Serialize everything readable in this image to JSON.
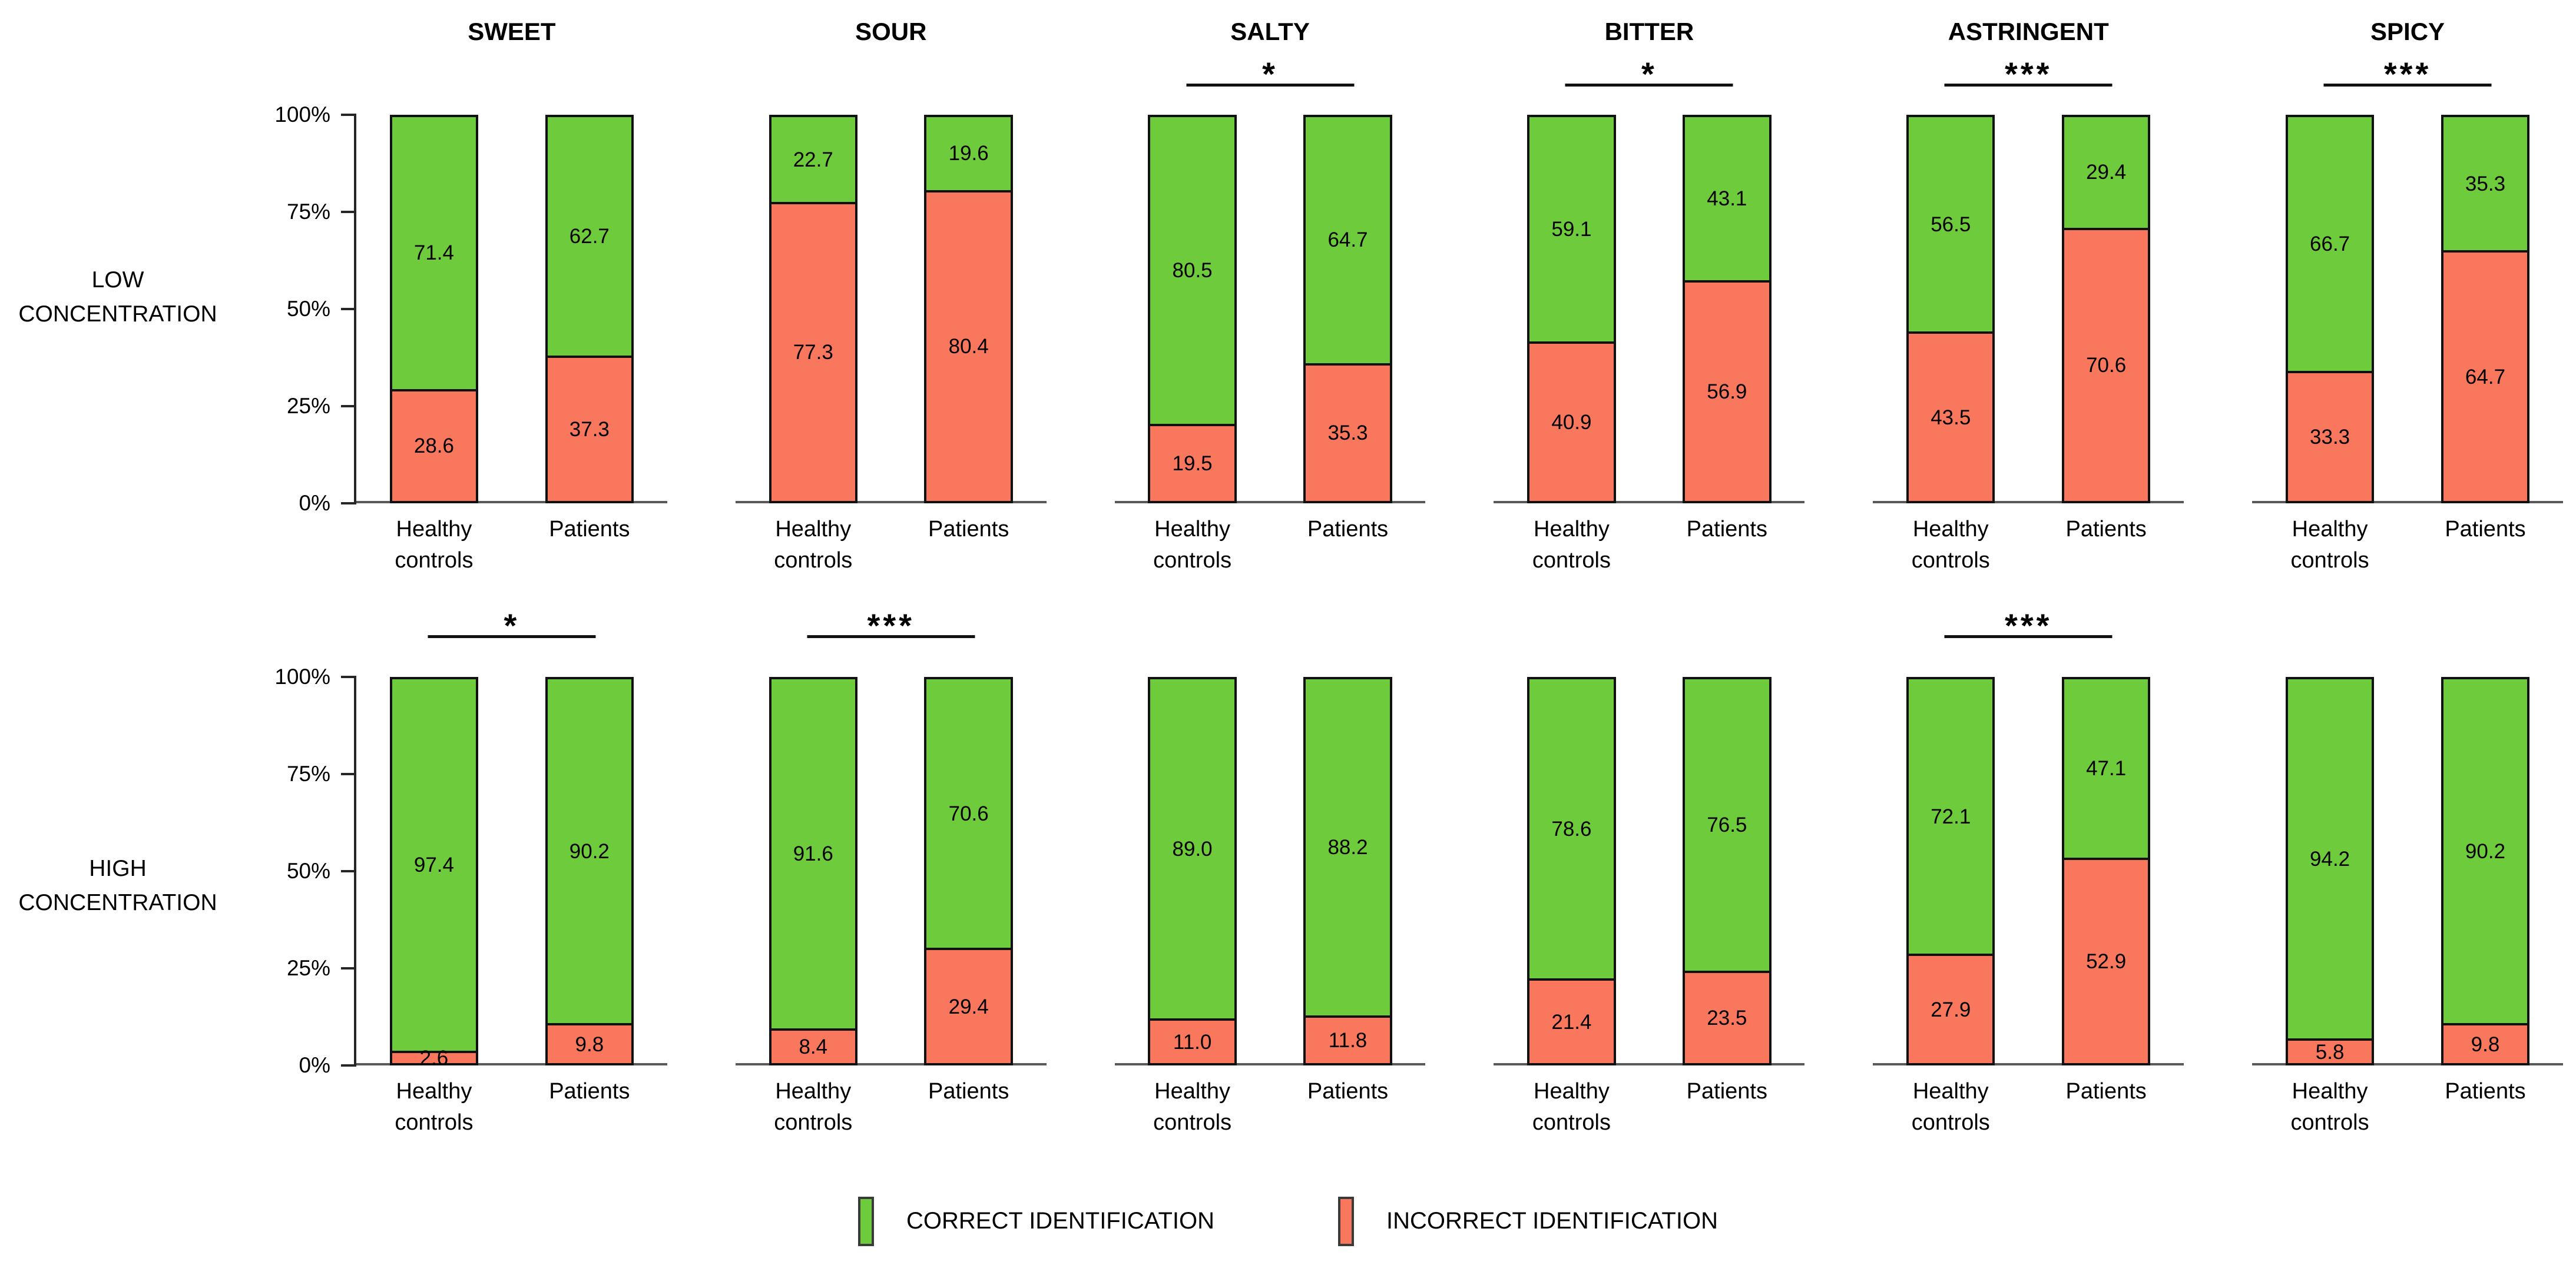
{
  "chart_data": {
    "type": "bar",
    "stacked": true,
    "value_unit": "percent",
    "colors": {
      "correct": "#6dcb3c",
      "incorrect": "#f9775c"
    },
    "legend": {
      "position": "bottom",
      "items": [
        {
          "key": "correct",
          "label": "CORRECT IDENTIFICATION",
          "color": "#6dcb3c"
        },
        {
          "key": "incorrect",
          "label": "INCORRECT IDENTIFICATION",
          "color": "#f9775c"
        }
      ]
    },
    "y_axis": {
      "range": [
        0,
        100
      ],
      "ticks": [
        "100%",
        "75%",
        "50%",
        "25%",
        "0%"
      ],
      "grid": false
    },
    "group_categories": [
      {
        "lines": [
          "Healthy",
          "controls"
        ]
      },
      {
        "lines": [
          "Patients"
        ]
      }
    ],
    "rows": [
      {
        "label": "LOW CONCENTRATION",
        "panels": [
          {
            "taste": "SWEET",
            "significance": "",
            "healthy_controls": {
              "correct": 71.4,
              "incorrect": 28.6
            },
            "patients": {
              "correct": 62.7,
              "incorrect": 37.3
            }
          },
          {
            "taste": "SOUR",
            "significance": "",
            "healthy_controls": {
              "correct": 22.7,
              "incorrect": 77.3
            },
            "patients": {
              "correct": 19.6,
              "incorrect": 80.4
            }
          },
          {
            "taste": "SALTY",
            "significance": "*",
            "healthy_controls": {
              "correct": 80.5,
              "incorrect": 19.5
            },
            "patients": {
              "correct": 64.7,
              "incorrect": 35.3
            }
          },
          {
            "taste": "BITTER",
            "significance": "*",
            "healthy_controls": {
              "correct": 59.1,
              "incorrect": 40.9
            },
            "patients": {
              "correct": 43.1,
              "incorrect": 56.9
            }
          },
          {
            "taste": "ASTRINGENT",
            "significance": "***",
            "healthy_controls": {
              "correct": 56.5,
              "incorrect": 43.5
            },
            "patients": {
              "correct": 29.4,
              "incorrect": 70.6
            }
          },
          {
            "taste": "SPICY",
            "significance": "***",
            "healthy_controls": {
              "correct": 66.7,
              "incorrect": 33.3
            },
            "patients": {
              "correct": 35.3,
              "incorrect": 64.7
            }
          }
        ]
      },
      {
        "label": "HIGH CONCENTRATION",
        "panels": [
          {
            "taste": "SWEET",
            "significance": "*",
            "healthy_controls": {
              "correct": 97.4,
              "incorrect": 2.6
            },
            "patients": {
              "correct": 90.2,
              "incorrect": 9.8
            }
          },
          {
            "taste": "SOUR",
            "significance": "***",
            "healthy_controls": {
              "correct": 91.6,
              "incorrect": 8.4
            },
            "patients": {
              "correct": 70.6,
              "incorrect": 29.4
            }
          },
          {
            "taste": "SALTY",
            "significance": "",
            "healthy_controls": {
              "correct": 89.0,
              "incorrect": 11.0
            },
            "patients": {
              "correct": 88.2,
              "incorrect": 11.8
            }
          },
          {
            "taste": "BITTER",
            "significance": "",
            "healthy_controls": {
              "correct": 78.6,
              "incorrect": 21.4
            },
            "patients": {
              "correct": 76.5,
              "incorrect": 23.5
            }
          },
          {
            "taste": "ASTRINGENT",
            "significance": "***",
            "healthy_controls": {
              "correct": 72.1,
              "incorrect": 27.9
            },
            "patients": {
              "correct": 47.1,
              "incorrect": 52.9
            }
          },
          {
            "taste": "SPICY",
            "significance": "",
            "healthy_controls": {
              "correct": 94.2,
              "incorrect": 5.8
            },
            "patients": {
              "correct": 90.2,
              "incorrect": 9.8
            }
          }
        ]
      }
    ]
  }
}
